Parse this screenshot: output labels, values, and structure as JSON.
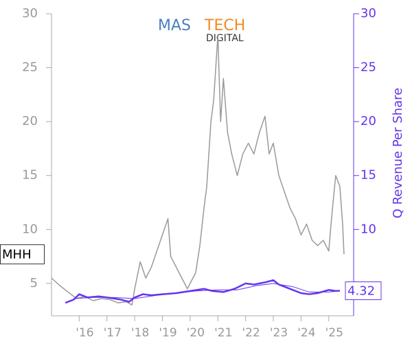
{
  "chart_data": {
    "type": "line",
    "logo": {
      "part1": "MAS",
      "part2": "TECH",
      "part3": "DIGITAL"
    },
    "y2_label": "Q Revenue Per Share",
    "ticker": "MHH",
    "last_value_label": {
      "value": 4.32,
      "label": "4.32"
    },
    "xlim": [
      2015,
      2025.6
    ],
    "xticks": [
      {
        "value": 2016,
        "label": "'16"
      },
      {
        "value": 2017,
        "label": "'17"
      },
      {
        "value": 2018,
        "label": "'18"
      },
      {
        "value": 2019,
        "label": "'19"
      },
      {
        "value": 2020,
        "label": "'20"
      },
      {
        "value": 2021,
        "label": "'21"
      },
      {
        "value": 2022,
        "label": "'22"
      },
      {
        "value": 2023,
        "label": "'23"
      },
      {
        "value": 2024,
        "label": "'24"
      },
      {
        "value": 2025,
        "label": "'25"
      }
    ],
    "ylim": [
      2,
      30
    ],
    "yticks": [
      5,
      10,
      15,
      20,
      25,
      30
    ],
    "y2lim": [
      2,
      30
    ],
    "y2ticks": [
      10,
      15,
      20,
      25,
      30
    ],
    "series": [
      {
        "color": "#999999",
        "width": 1.5,
        "x": [
          2015.0,
          2015.3,
          2015.6,
          2015.9,
          2016.2,
          2016.5,
          2016.8,
          2017.1,
          2017.4,
          2017.7,
          2017.9,
          2018.0,
          2018.2,
          2018.4,
          2018.6,
          2018.8,
          2019.0,
          2019.2,
          2019.3,
          2019.5,
          2019.7,
          2019.9,
          2020.1,
          2020.2,
          2020.35,
          2020.5,
          2020.6,
          2020.75,
          2020.85,
          2021.0,
          2021.1,
          2021.2,
          2021.35,
          2021.5,
          2021.7,
          2021.9,
          2022.1,
          2022.3,
          2022.5,
          2022.7,
          2022.85,
          2023.0,
          2023.2,
          2023.4,
          2023.6,
          2023.8,
          2024.0,
          2024.2,
          2024.4,
          2024.6,
          2024.8,
          2025.0,
          2025.1,
          2025.25,
          2025.4,
          2025.5,
          2025.55
        ],
        "values": [
          5.5,
          4.8,
          4.2,
          3.6,
          3.8,
          3.4,
          3.6,
          3.5,
          3.2,
          3.3,
          3.0,
          4.5,
          7.0,
          5.5,
          6.5,
          8.0,
          9.5,
          11.0,
          7.5,
          6.5,
          5.5,
          4.5,
          5.5,
          6.0,
          8.5,
          12,
          14,
          20,
          22,
          28,
          20,
          24,
          19,
          17,
          15,
          17,
          18,
          17,
          19,
          20.5,
          17,
          18,
          15,
          13.5,
          12,
          11,
          9.5,
          10.5,
          9,
          8.5,
          9,
          8,
          11,
          15,
          14,
          10.5,
          7.7
        ]
      },
      {
        "color": "#6633ee",
        "width": 2.5,
        "axis": "y2",
        "x": [
          2015.5,
          2015.8,
          2016.0,
          2016.3,
          2016.7,
          2017.0,
          2017.5,
          2017.8,
          2018.0,
          2018.3,
          2018.6,
          2019.0,
          2019.5,
          2020.0,
          2020.5,
          2020.8,
          2021.2,
          2021.6,
          2022.0,
          2022.3,
          2022.7,
          2023.0,
          2023.2,
          2023.6,
          2024.0,
          2024.3,
          2024.6,
          2025.0,
          2025.25,
          2025.4
        ],
        "values": [
          3.2,
          3.5,
          4.0,
          3.7,
          3.8,
          3.7,
          3.5,
          3.3,
          3.7,
          4.0,
          3.9,
          4.0,
          4.1,
          4.3,
          4.5,
          4.3,
          4.2,
          4.5,
          5.0,
          4.9,
          5.1,
          5.3,
          4.9,
          4.5,
          4.1,
          4.0,
          4.1,
          4.4,
          4.3,
          4.32
        ]
      },
      {
        "color": "#6633ee",
        "width": 1,
        "axis": "y2",
        "x": [
          2015.8,
          2016.5,
          2017.2,
          2018.0,
          2018.8,
          2019.5,
          2020.2,
          2021.0,
          2021.7,
          2022.4,
          2023.0,
          2023.7,
          2024.3,
          2025.0,
          2025.4
        ],
        "values": [
          3.6,
          3.7,
          3.7,
          3.6,
          3.9,
          4.1,
          4.3,
          4.4,
          4.4,
          4.8,
          5.0,
          4.7,
          4.2,
          4.2,
          4.3
        ]
      }
    ]
  }
}
